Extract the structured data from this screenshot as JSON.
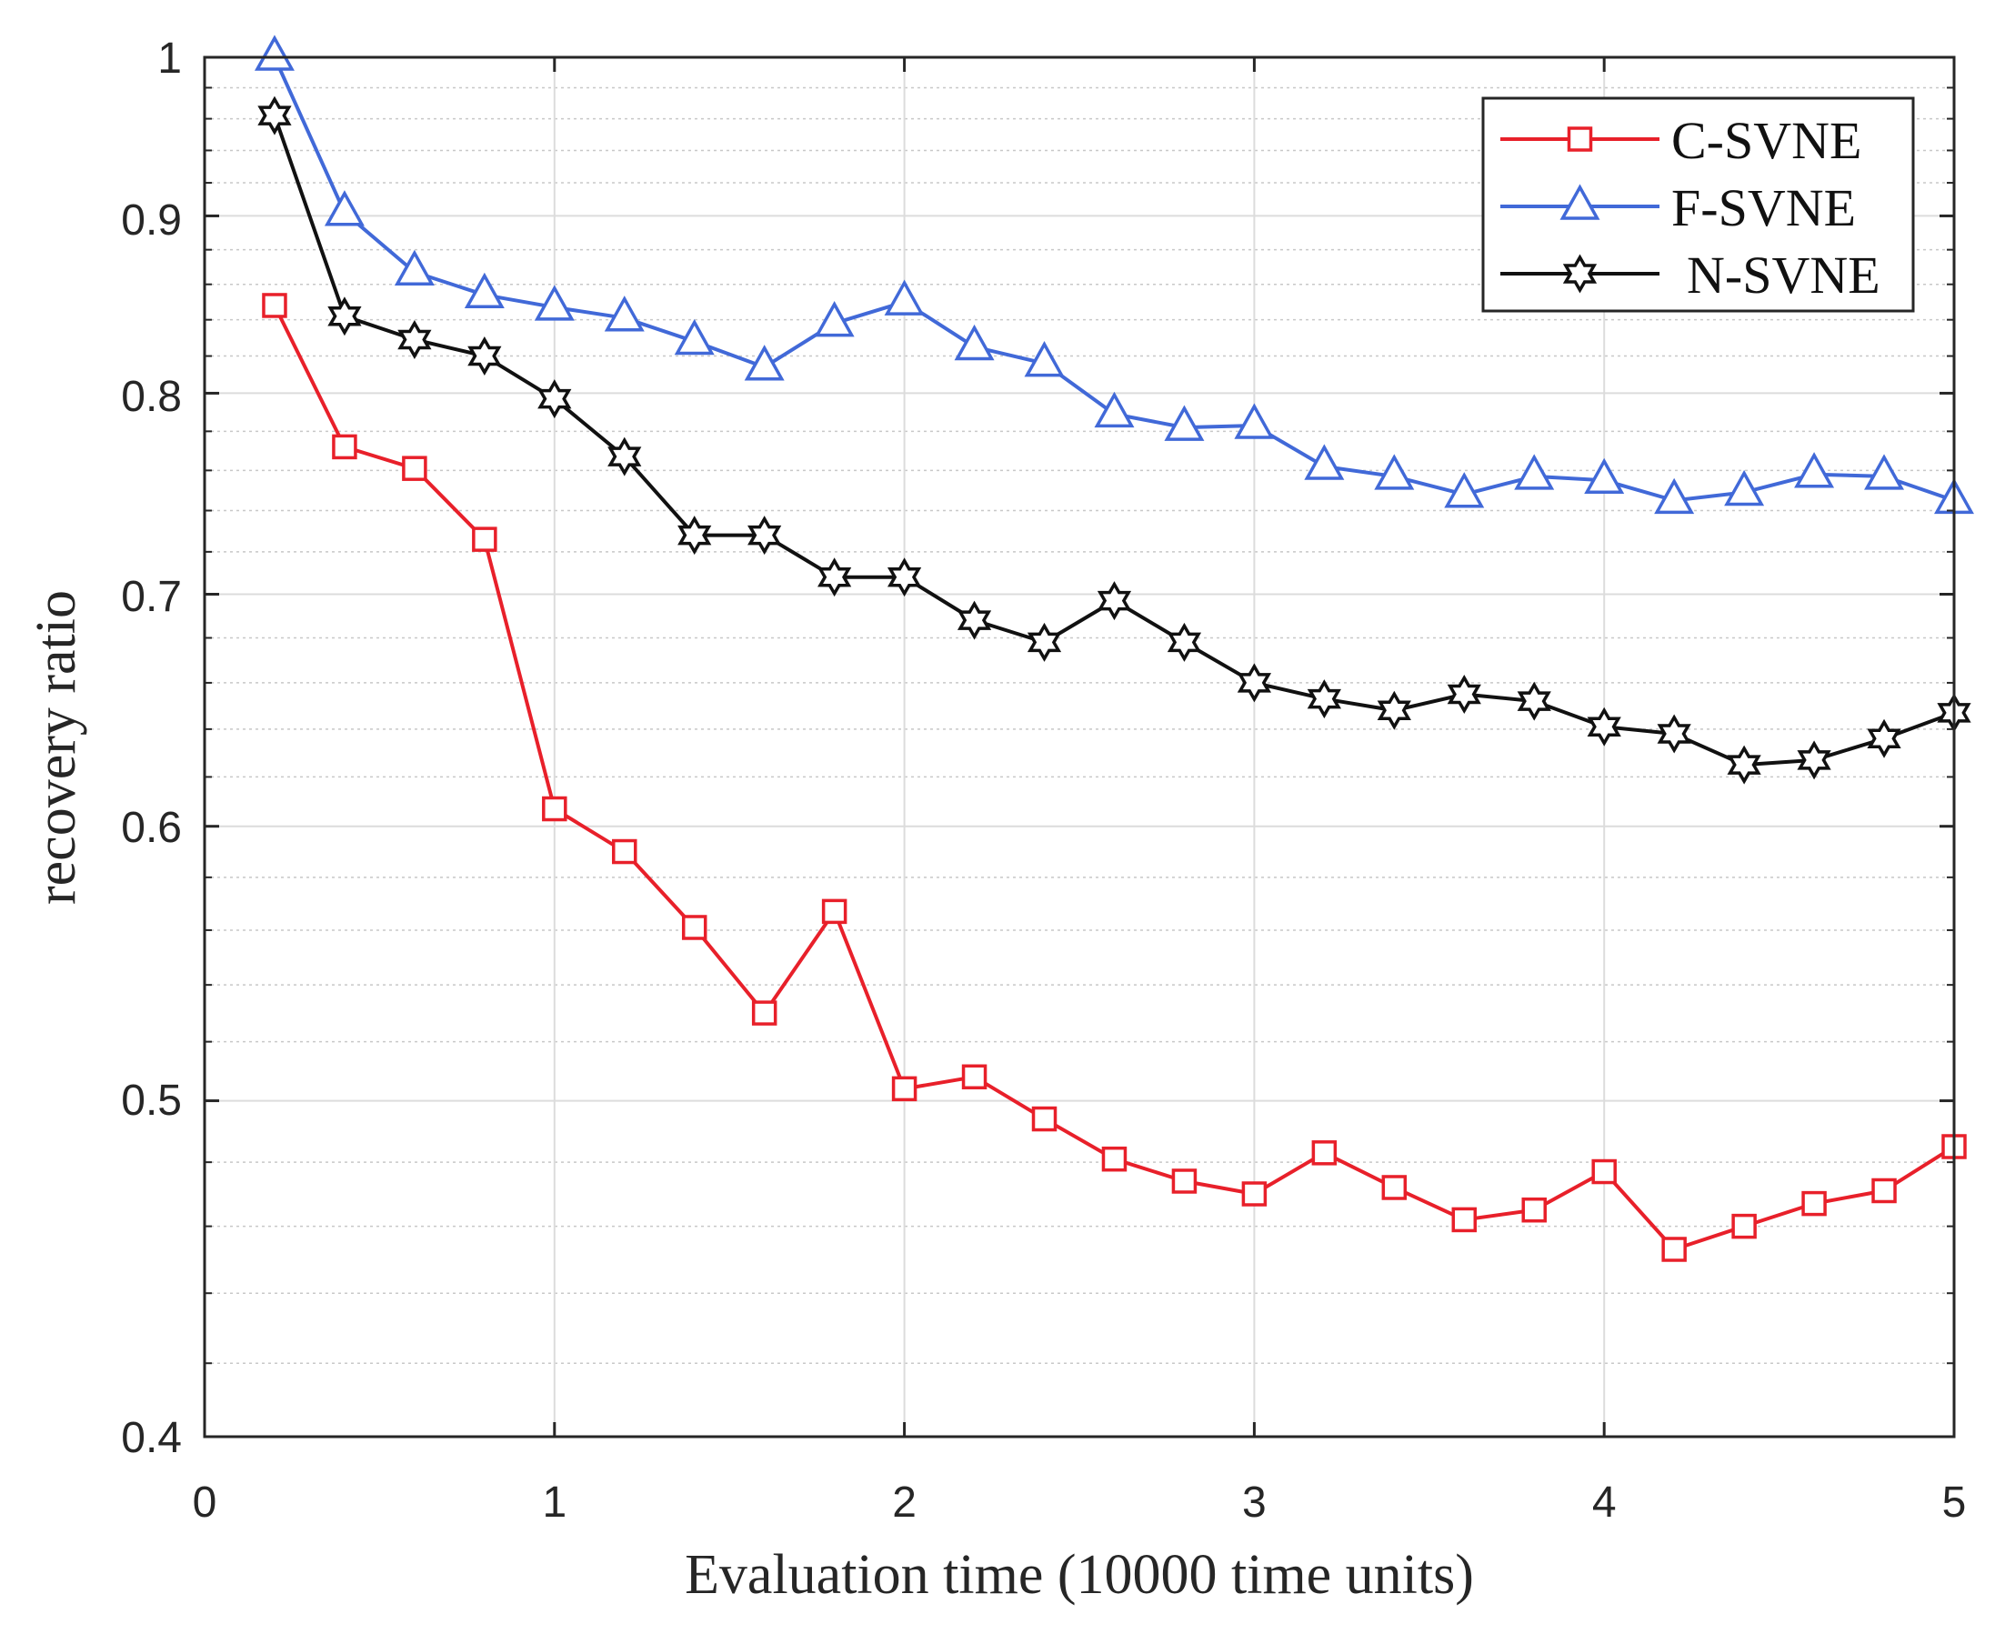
{
  "chart_data": {
    "type": "line",
    "title": "",
    "xlabel": "Evaluation time (10000 time units)",
    "ylabel": "recovery ratio",
    "xlim": [
      0,
      5
    ],
    "ylim": [
      0.4,
      1.0
    ],
    "yscale": "log",
    "x_ticks": [
      "0",
      "1",
      "2",
      "3",
      "4",
      "5"
    ],
    "y_ticks": [
      "0.4",
      "0.5",
      "0.6",
      "0.7",
      "0.8",
      "0.9",
      "1"
    ],
    "grid": true,
    "legend_position": "top-right",
    "x": [
      0.2,
      0.4,
      0.6,
      0.8,
      1.0,
      1.2,
      1.4,
      1.6,
      1.8,
      2.0,
      2.2,
      2.4,
      2.6,
      2.8,
      3.0,
      3.2,
      3.4,
      3.6,
      3.8,
      4.0,
      4.2,
      4.4,
      4.6,
      4.8,
      5.0
    ],
    "series": [
      {
        "name": "C-SVNE",
        "color": "#e8202a",
        "marker": "square",
        "values": [
          0.848,
          0.772,
          0.761,
          0.726,
          0.607,
          0.59,
          0.561,
          0.53,
          0.567,
          0.504,
          0.508,
          0.494,
          0.481,
          0.474,
          0.47,
          0.483,
          0.472,
          0.462,
          0.465,
          0.477,
          0.453,
          0.46,
          0.467,
          0.471,
          0.485
        ]
      },
      {
        "name": "F-SVNE",
        "color": "#4169d8",
        "marker": "triangle",
        "values": [
          1.0,
          0.902,
          0.867,
          0.854,
          0.847,
          0.841,
          0.828,
          0.814,
          0.838,
          0.85,
          0.825,
          0.816,
          0.789,
          0.782,
          0.783,
          0.762,
          0.757,
          0.748,
          0.757,
          0.755,
          0.745,
          0.749,
          0.758,
          0.757,
          0.745
        ]
      },
      {
        "name": "N-SVNE",
        "color": "#111111",
        "marker": "hexagram",
        "values": [
          0.962,
          0.842,
          0.829,
          0.82,
          0.797,
          0.767,
          0.728,
          0.728,
          0.708,
          0.708,
          0.688,
          0.678,
          0.697,
          0.678,
          0.66,
          0.653,
          0.648,
          0.655,
          0.652,
          0.641,
          0.638,
          0.625,
          0.627,
          0.636,
          0.647
        ]
      }
    ]
  }
}
